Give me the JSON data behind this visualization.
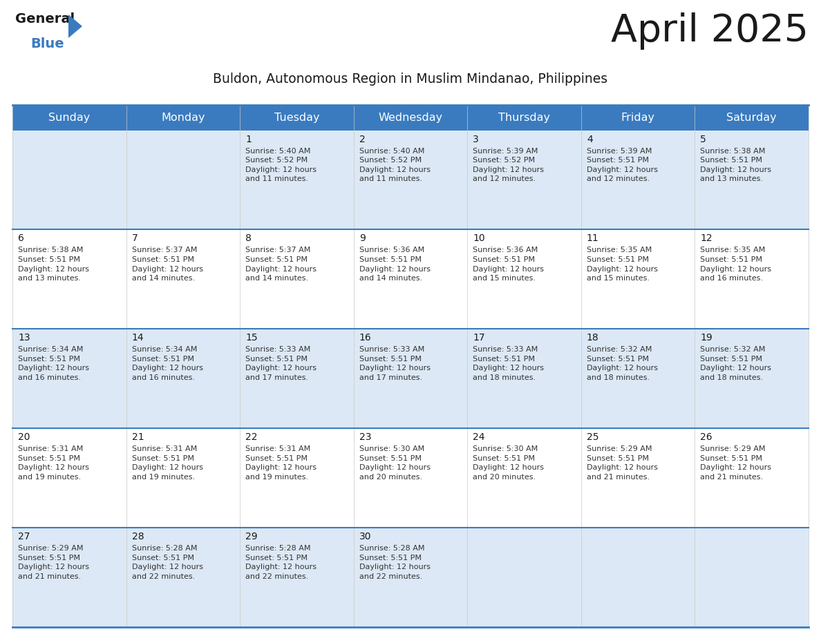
{
  "title": "April 2025",
  "subtitle": "Buldon, Autonomous Region in Muslim Mindanao, Philippines",
  "header_bg_color": "#3a7bbf",
  "header_text_color": "#ffffff",
  "bg_color": "#ffffff",
  "cell_bg_light": "#dce8f5",
  "cell_bg_white": "#ffffff",
  "day_headers": [
    "Sunday",
    "Monday",
    "Tuesday",
    "Wednesday",
    "Thursday",
    "Friday",
    "Saturday"
  ],
  "title_color": "#1a1a1a",
  "subtitle_color": "#1a1a1a",
  "cell_text_color": "#333333",
  "date_num_color": "#1a1a1a",
  "grid_line_color": "#3a7bbf",
  "calendar_data": [
    [
      {
        "day": "",
        "info": ""
      },
      {
        "day": "",
        "info": ""
      },
      {
        "day": "1",
        "info": "Sunrise: 5:40 AM\nSunset: 5:52 PM\nDaylight: 12 hours\nand 11 minutes."
      },
      {
        "day": "2",
        "info": "Sunrise: 5:40 AM\nSunset: 5:52 PM\nDaylight: 12 hours\nand 11 minutes."
      },
      {
        "day": "3",
        "info": "Sunrise: 5:39 AM\nSunset: 5:52 PM\nDaylight: 12 hours\nand 12 minutes."
      },
      {
        "day": "4",
        "info": "Sunrise: 5:39 AM\nSunset: 5:51 PM\nDaylight: 12 hours\nand 12 minutes."
      },
      {
        "day": "5",
        "info": "Sunrise: 5:38 AM\nSunset: 5:51 PM\nDaylight: 12 hours\nand 13 minutes."
      }
    ],
    [
      {
        "day": "6",
        "info": "Sunrise: 5:38 AM\nSunset: 5:51 PM\nDaylight: 12 hours\nand 13 minutes."
      },
      {
        "day": "7",
        "info": "Sunrise: 5:37 AM\nSunset: 5:51 PM\nDaylight: 12 hours\nand 14 minutes."
      },
      {
        "day": "8",
        "info": "Sunrise: 5:37 AM\nSunset: 5:51 PM\nDaylight: 12 hours\nand 14 minutes."
      },
      {
        "day": "9",
        "info": "Sunrise: 5:36 AM\nSunset: 5:51 PM\nDaylight: 12 hours\nand 14 minutes."
      },
      {
        "day": "10",
        "info": "Sunrise: 5:36 AM\nSunset: 5:51 PM\nDaylight: 12 hours\nand 15 minutes."
      },
      {
        "day": "11",
        "info": "Sunrise: 5:35 AM\nSunset: 5:51 PM\nDaylight: 12 hours\nand 15 minutes."
      },
      {
        "day": "12",
        "info": "Sunrise: 5:35 AM\nSunset: 5:51 PM\nDaylight: 12 hours\nand 16 minutes."
      }
    ],
    [
      {
        "day": "13",
        "info": "Sunrise: 5:34 AM\nSunset: 5:51 PM\nDaylight: 12 hours\nand 16 minutes."
      },
      {
        "day": "14",
        "info": "Sunrise: 5:34 AM\nSunset: 5:51 PM\nDaylight: 12 hours\nand 16 minutes."
      },
      {
        "day": "15",
        "info": "Sunrise: 5:33 AM\nSunset: 5:51 PM\nDaylight: 12 hours\nand 17 minutes."
      },
      {
        "day": "16",
        "info": "Sunrise: 5:33 AM\nSunset: 5:51 PM\nDaylight: 12 hours\nand 17 minutes."
      },
      {
        "day": "17",
        "info": "Sunrise: 5:33 AM\nSunset: 5:51 PM\nDaylight: 12 hours\nand 18 minutes."
      },
      {
        "day": "18",
        "info": "Sunrise: 5:32 AM\nSunset: 5:51 PM\nDaylight: 12 hours\nand 18 minutes."
      },
      {
        "day": "19",
        "info": "Sunrise: 5:32 AM\nSunset: 5:51 PM\nDaylight: 12 hours\nand 18 minutes."
      }
    ],
    [
      {
        "day": "20",
        "info": "Sunrise: 5:31 AM\nSunset: 5:51 PM\nDaylight: 12 hours\nand 19 minutes."
      },
      {
        "day": "21",
        "info": "Sunrise: 5:31 AM\nSunset: 5:51 PM\nDaylight: 12 hours\nand 19 minutes."
      },
      {
        "day": "22",
        "info": "Sunrise: 5:31 AM\nSunset: 5:51 PM\nDaylight: 12 hours\nand 19 minutes."
      },
      {
        "day": "23",
        "info": "Sunrise: 5:30 AM\nSunset: 5:51 PM\nDaylight: 12 hours\nand 20 minutes."
      },
      {
        "day": "24",
        "info": "Sunrise: 5:30 AM\nSunset: 5:51 PM\nDaylight: 12 hours\nand 20 minutes."
      },
      {
        "day": "25",
        "info": "Sunrise: 5:29 AM\nSunset: 5:51 PM\nDaylight: 12 hours\nand 21 minutes."
      },
      {
        "day": "26",
        "info": "Sunrise: 5:29 AM\nSunset: 5:51 PM\nDaylight: 12 hours\nand 21 minutes."
      }
    ],
    [
      {
        "day": "27",
        "info": "Sunrise: 5:29 AM\nSunset: 5:51 PM\nDaylight: 12 hours\nand 21 minutes."
      },
      {
        "day": "28",
        "info": "Sunrise: 5:28 AM\nSunset: 5:51 PM\nDaylight: 12 hours\nand 22 minutes."
      },
      {
        "day": "29",
        "info": "Sunrise: 5:28 AM\nSunset: 5:51 PM\nDaylight: 12 hours\nand 22 minutes."
      },
      {
        "day": "30",
        "info": "Sunrise: 5:28 AM\nSunset: 5:51 PM\nDaylight: 12 hours\nand 22 minutes."
      },
      {
        "day": "",
        "info": ""
      },
      {
        "day": "",
        "info": ""
      },
      {
        "day": "",
        "info": ""
      }
    ]
  ],
  "logo_text_general": "General",
  "logo_text_blue": "Blue",
  "logo_color_general": "#1a1a1a",
  "logo_color_blue": "#3a7bbf",
  "logo_triangle_color": "#3a7bbf",
  "fig_width": 11.88,
  "fig_height": 9.18,
  "dpi": 100
}
